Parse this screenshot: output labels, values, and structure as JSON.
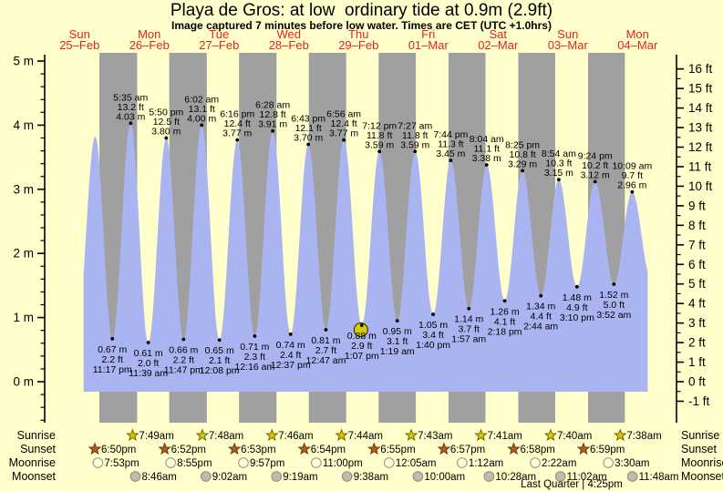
{
  "title": "Playa de Gros: at low  ordinary tide at 0.9m (2.9ft)",
  "subtitle": "Image captured 7 minutes before low water. Times are CET (UTC +1.0hrs)",
  "colors": {
    "background": "#ffffcc",
    "night_band": "#a0a0a0",
    "water": "#aab4f0",
    "day_label": "#e62222",
    "axis": "#000000",
    "annotation_text": "#000000",
    "current_marker_fill": "#d6ca00",
    "current_marker_stroke": "#222222",
    "sunrise_star_fill": "#ddc800",
    "sunrise_star_stroke": "#776600",
    "sunset_star_fill": "#b06020",
    "sunset_star_stroke": "#703010",
    "moonrise_fill": "#ffffd6",
    "moonrise_stroke": "#909090",
    "moonset_fill": "#bdbdae",
    "moonset_stroke": "#8a8a80"
  },
  "day_labels": [
    {
      "name": "Sun",
      "date": "25–Feb"
    },
    {
      "name": "Mon",
      "date": "26–Feb"
    },
    {
      "name": "Tue",
      "date": "27–Feb"
    },
    {
      "name": "Wed",
      "date": "28–Feb"
    },
    {
      "name": "Thu",
      "date": "29–Feb"
    },
    {
      "name": "Fri",
      "date": "01–Mar"
    },
    {
      "name": "Sat",
      "date": "02–Mar"
    },
    {
      "name": "Sun",
      "date": "03–Mar"
    },
    {
      "name": "Mon",
      "date": "04–Mar"
    }
  ],
  "axes": {
    "left_unit": "m",
    "left_ticks": [
      {
        "v": 5,
        "label": "5 m"
      },
      {
        "v": 4,
        "label": "4 m"
      },
      {
        "v": 3,
        "label": "3 m"
      },
      {
        "v": 2,
        "label": "2 m"
      },
      {
        "v": 1,
        "label": "1 m"
      },
      {
        "v": 0,
        "label": "0 m"
      }
    ],
    "right_unit": "ft",
    "right_ticks": [
      {
        "v": 16,
        "label": "16 ft"
      },
      {
        "v": 15,
        "label": "15 ft"
      },
      {
        "v": 14,
        "label": "14 ft"
      },
      {
        "v": 13,
        "label": "13 ft"
      },
      {
        "v": 12,
        "label": "12 ft"
      },
      {
        "v": 11,
        "label": "11 ft"
      },
      {
        "v": 10,
        "label": "10 ft"
      },
      {
        "v": 9,
        "label": "9 ft"
      },
      {
        "v": 8,
        "label": "8 ft"
      },
      {
        "v": 7,
        "label": "7 ft"
      },
      {
        "v": 6,
        "label": "6 ft"
      },
      {
        "v": 5,
        "label": "5 ft"
      },
      {
        "v": 4,
        "label": "4 ft"
      },
      {
        "v": 3,
        "label": "3 ft"
      },
      {
        "v": 2,
        "label": "2 ft"
      },
      {
        "v": 1,
        "label": "1 ft"
      },
      {
        "v": 0,
        "label": "0 ft"
      },
      {
        "v": -1,
        "label": "-1 ft"
      }
    ]
  },
  "chart_data": {
    "type": "area",
    "title": "Playa de Gros: at low  ordinary tide at 0.9m (2.9ft)",
    "x_axis_days": [
      "Sun 25-Feb",
      "Mon 26-Feb",
      "Tue 27-Feb",
      "Wed 28-Feb",
      "Thu 29-Feb",
      "Fri 01-Mar",
      "Sat 02-Mar",
      "Sun 03-Mar",
      "Mon 04-Mar"
    ],
    "y_range_m": [
      -0.3,
      5.0
    ],
    "y_range_ft": [
      -1,
      16
    ],
    "time_origin": "25-Feb 00:00 CET",
    "data_window_hours": {
      "start": 13.4,
      "end": 207.5
    },
    "night_bands_hours": [
      [
        18.83,
        31.82
      ],
      [
        42.87,
        55.8
      ],
      [
        66.88,
        79.77
      ],
      [
        90.9,
        103.73
      ],
      [
        114.92,
        127.72
      ],
      [
        138.95,
        151.68
      ],
      [
        162.97,
        175.67
      ],
      [
        186.98,
        199.63
      ]
    ],
    "tide_events": [
      {
        "kind": "low",
        "t": 10.88,
        "m": 0.63
      },
      {
        "kind": "high",
        "t": 17.38,
        "m": 3.82
      },
      {
        "kind": "low",
        "t": 23.28,
        "m": 0.67,
        "labels": [
          "0.67 m",
          "2.2 ft",
          "11:17 pm"
        ]
      },
      {
        "kind": "high",
        "t": 29.58,
        "m": 4.03,
        "labels": [
          "5:35 am",
          "13.2 ft",
          "4.03 m"
        ]
      },
      {
        "kind": "low",
        "t": 35.65,
        "m": 0.61,
        "labels": [
          "0.61 m",
          "2.0 ft",
          "11:39 am"
        ]
      },
      {
        "kind": "high",
        "t": 41.83,
        "m": 3.8,
        "labels": [
          "5:50 pm",
          "12.5 ft",
          "3.80 m"
        ]
      },
      {
        "kind": "low",
        "t": 47.78,
        "m": 0.66,
        "labels": [
          "0.66 m",
          "2.2 ft",
          "11:47 pm"
        ]
      },
      {
        "kind": "high",
        "t": 54.03,
        "m": 4.0,
        "labels": [
          "6:02 am",
          "13.1 ft",
          "4.00 m"
        ]
      },
      {
        "kind": "low",
        "t": 60.13,
        "m": 0.65,
        "labels": [
          "0.65 m",
          "2.1 ft",
          "12:08 pm"
        ]
      },
      {
        "kind": "high",
        "t": 66.27,
        "m": 3.77,
        "labels": [
          "6:16 pm",
          "12.4 ft",
          "3.77 m"
        ]
      },
      {
        "kind": "low",
        "t": 72.27,
        "m": 0.71,
        "labels": [
          "0.71 m",
          "2.3 ft",
          "12:16 am"
        ]
      },
      {
        "kind": "high",
        "t": 78.47,
        "m": 3.91,
        "labels": [
          "6:28 am",
          "12.8 ft",
          "3.91 m"
        ]
      },
      {
        "kind": "low",
        "t": 84.62,
        "m": 0.74,
        "labels": [
          "0.74 m",
          "2.4 ft",
          "12:37 pm"
        ]
      },
      {
        "kind": "high",
        "t": 90.72,
        "m": 3.7,
        "labels": [
          "6:43 pm",
          "12.1 ft",
          "3.70 m"
        ]
      },
      {
        "kind": "low",
        "t": 96.78,
        "m": 0.81,
        "labels": [
          "0.81 m",
          "2.7 ft",
          "12:47 am"
        ]
      },
      {
        "kind": "high",
        "t": 102.93,
        "m": 3.77,
        "labels": [
          "6:56 am",
          "12.4 ft",
          "3.77 m"
        ]
      },
      {
        "kind": "low",
        "t": 109.12,
        "m": 0.88,
        "labels": [
          "0.88 m",
          "2.9 ft",
          "1:07 pm"
        ],
        "current": true
      },
      {
        "kind": "high",
        "t": 115.2,
        "m": 3.59,
        "labels": [
          "7:12 pm",
          "11.8 ft",
          "3.59 m"
        ]
      },
      {
        "kind": "low",
        "t": 121.32,
        "m": 0.95,
        "labels": [
          "0.95 m",
          "3.1 ft",
          "1:19 am"
        ]
      },
      {
        "kind": "high",
        "t": 127.45,
        "m": 3.59,
        "labels": [
          "7:27 am",
          "11.8 ft",
          "3.59 m"
        ]
      },
      {
        "kind": "low",
        "t": 133.67,
        "m": 1.05,
        "labels": [
          "1.05 m",
          "3.4 ft",
          "1:40 pm"
        ]
      },
      {
        "kind": "high",
        "t": 139.73,
        "m": 3.45,
        "labels": [
          "7:44 pm",
          "11.3 ft",
          "3.45 m"
        ]
      },
      {
        "kind": "low",
        "t": 145.95,
        "m": 1.14,
        "labels": [
          "1.14 m",
          "3.7 ft",
          "1:57 am"
        ]
      },
      {
        "kind": "high",
        "t": 152.07,
        "m": 3.38,
        "labels": [
          "8:04 am",
          "11.1 ft",
          "3.38 m"
        ]
      },
      {
        "kind": "low",
        "t": 158.3,
        "m": 1.26,
        "labels": [
          "1.26 m",
          "4.1 ft",
          "2:18 pm"
        ]
      },
      {
        "kind": "high",
        "t": 164.42,
        "m": 3.29,
        "labels": [
          "8:25 pm",
          "10.8 ft",
          "3.29 m"
        ]
      },
      {
        "kind": "low",
        "t": 170.73,
        "m": 1.34,
        "labels": [
          "1.34 m",
          "4.4 ft",
          "2:44 am"
        ]
      },
      {
        "kind": "high",
        "t": 176.9,
        "m": 3.15,
        "labels": [
          "8:54 am",
          "10.3 ft",
          "3.15 m"
        ]
      },
      {
        "kind": "low",
        "t": 183.17,
        "m": 1.48,
        "labels": [
          "1.48 m",
          "4.9 ft",
          "3:10 pm"
        ]
      },
      {
        "kind": "high",
        "t": 189.4,
        "m": 3.12,
        "labels": [
          "9:24 pm",
          "10.2 ft",
          "3.12 m"
        ]
      },
      {
        "kind": "low",
        "t": 195.87,
        "m": 1.52,
        "labels": [
          "1.52 m",
          "5.0 ft",
          "3:52 am"
        ]
      },
      {
        "kind": "high",
        "t": 202.15,
        "m": 2.96,
        "labels": [
          "10:09 am",
          "9.7 ft",
          "2.96 m"
        ]
      },
      {
        "kind": "low",
        "t": 208.58,
        "m": 1.62
      }
    ]
  },
  "astro": {
    "rows": [
      {
        "label": "Sunrise",
        "icon": "sunrise-star",
        "events": [
          {
            "t": 31.82,
            "time": "7:49am"
          },
          {
            "t": 55.8,
            "time": "7:48am"
          },
          {
            "t": 79.77,
            "time": "7:46am"
          },
          {
            "t": 103.73,
            "time": "7:44am"
          },
          {
            "t": 127.72,
            "time": "7:43am"
          },
          {
            "t": 151.68,
            "time": "7:41am"
          },
          {
            "t": 175.67,
            "time": "7:40am"
          },
          {
            "t": 199.63,
            "time": "7:38am"
          }
        ]
      },
      {
        "label": "Sunset",
        "icon": "sunset-star",
        "events": [
          {
            "t": 18.83,
            "time": "6:50pm"
          },
          {
            "t": 42.87,
            "time": "6:52pm"
          },
          {
            "t": 66.88,
            "time": "6:53pm"
          },
          {
            "t": 90.9,
            "time": "6:54pm"
          },
          {
            "t": 114.92,
            "time": "6:55pm"
          },
          {
            "t": 138.95,
            "time": "6:57pm"
          },
          {
            "t": 162.97,
            "time": "6:58pm"
          },
          {
            "t": 186.98,
            "time": "6:59pm"
          }
        ]
      },
      {
        "label": "Moonrise",
        "icon": "moonrise-circle",
        "events": [
          {
            "t": 19.88,
            "time": "7:53pm"
          },
          {
            "t": 44.92,
            "time": "8:55pm"
          },
          {
            "t": 69.95,
            "time": "9:57pm"
          },
          {
            "t": 95.0,
            "time": "11:00pm"
          },
          {
            "t": 120.08,
            "time": "12:05am"
          },
          {
            "t": 145.2,
            "time": "1:12am"
          },
          {
            "t": 170.37,
            "time": "2:22am"
          },
          {
            "t": 195.5,
            "time": "3:30am"
          }
        ]
      },
      {
        "label": "Moonset",
        "icon": "moonset-circle",
        "events": [
          {
            "t": 32.77,
            "time": "8:46am"
          },
          {
            "t": 57.03,
            "time": "9:02am"
          },
          {
            "t": 81.32,
            "time": "9:19am"
          },
          {
            "t": 105.63,
            "time": "9:38am"
          },
          {
            "t": 130.0,
            "time": "10:00am"
          },
          {
            "t": 154.47,
            "time": "10:28am"
          },
          {
            "t": 179.03,
            "time": "11:02am"
          },
          {
            "t": 203.8,
            "time": "11:48am"
          }
        ]
      }
    ],
    "moon_phase": "Last Quarter | 4:25pm"
  }
}
